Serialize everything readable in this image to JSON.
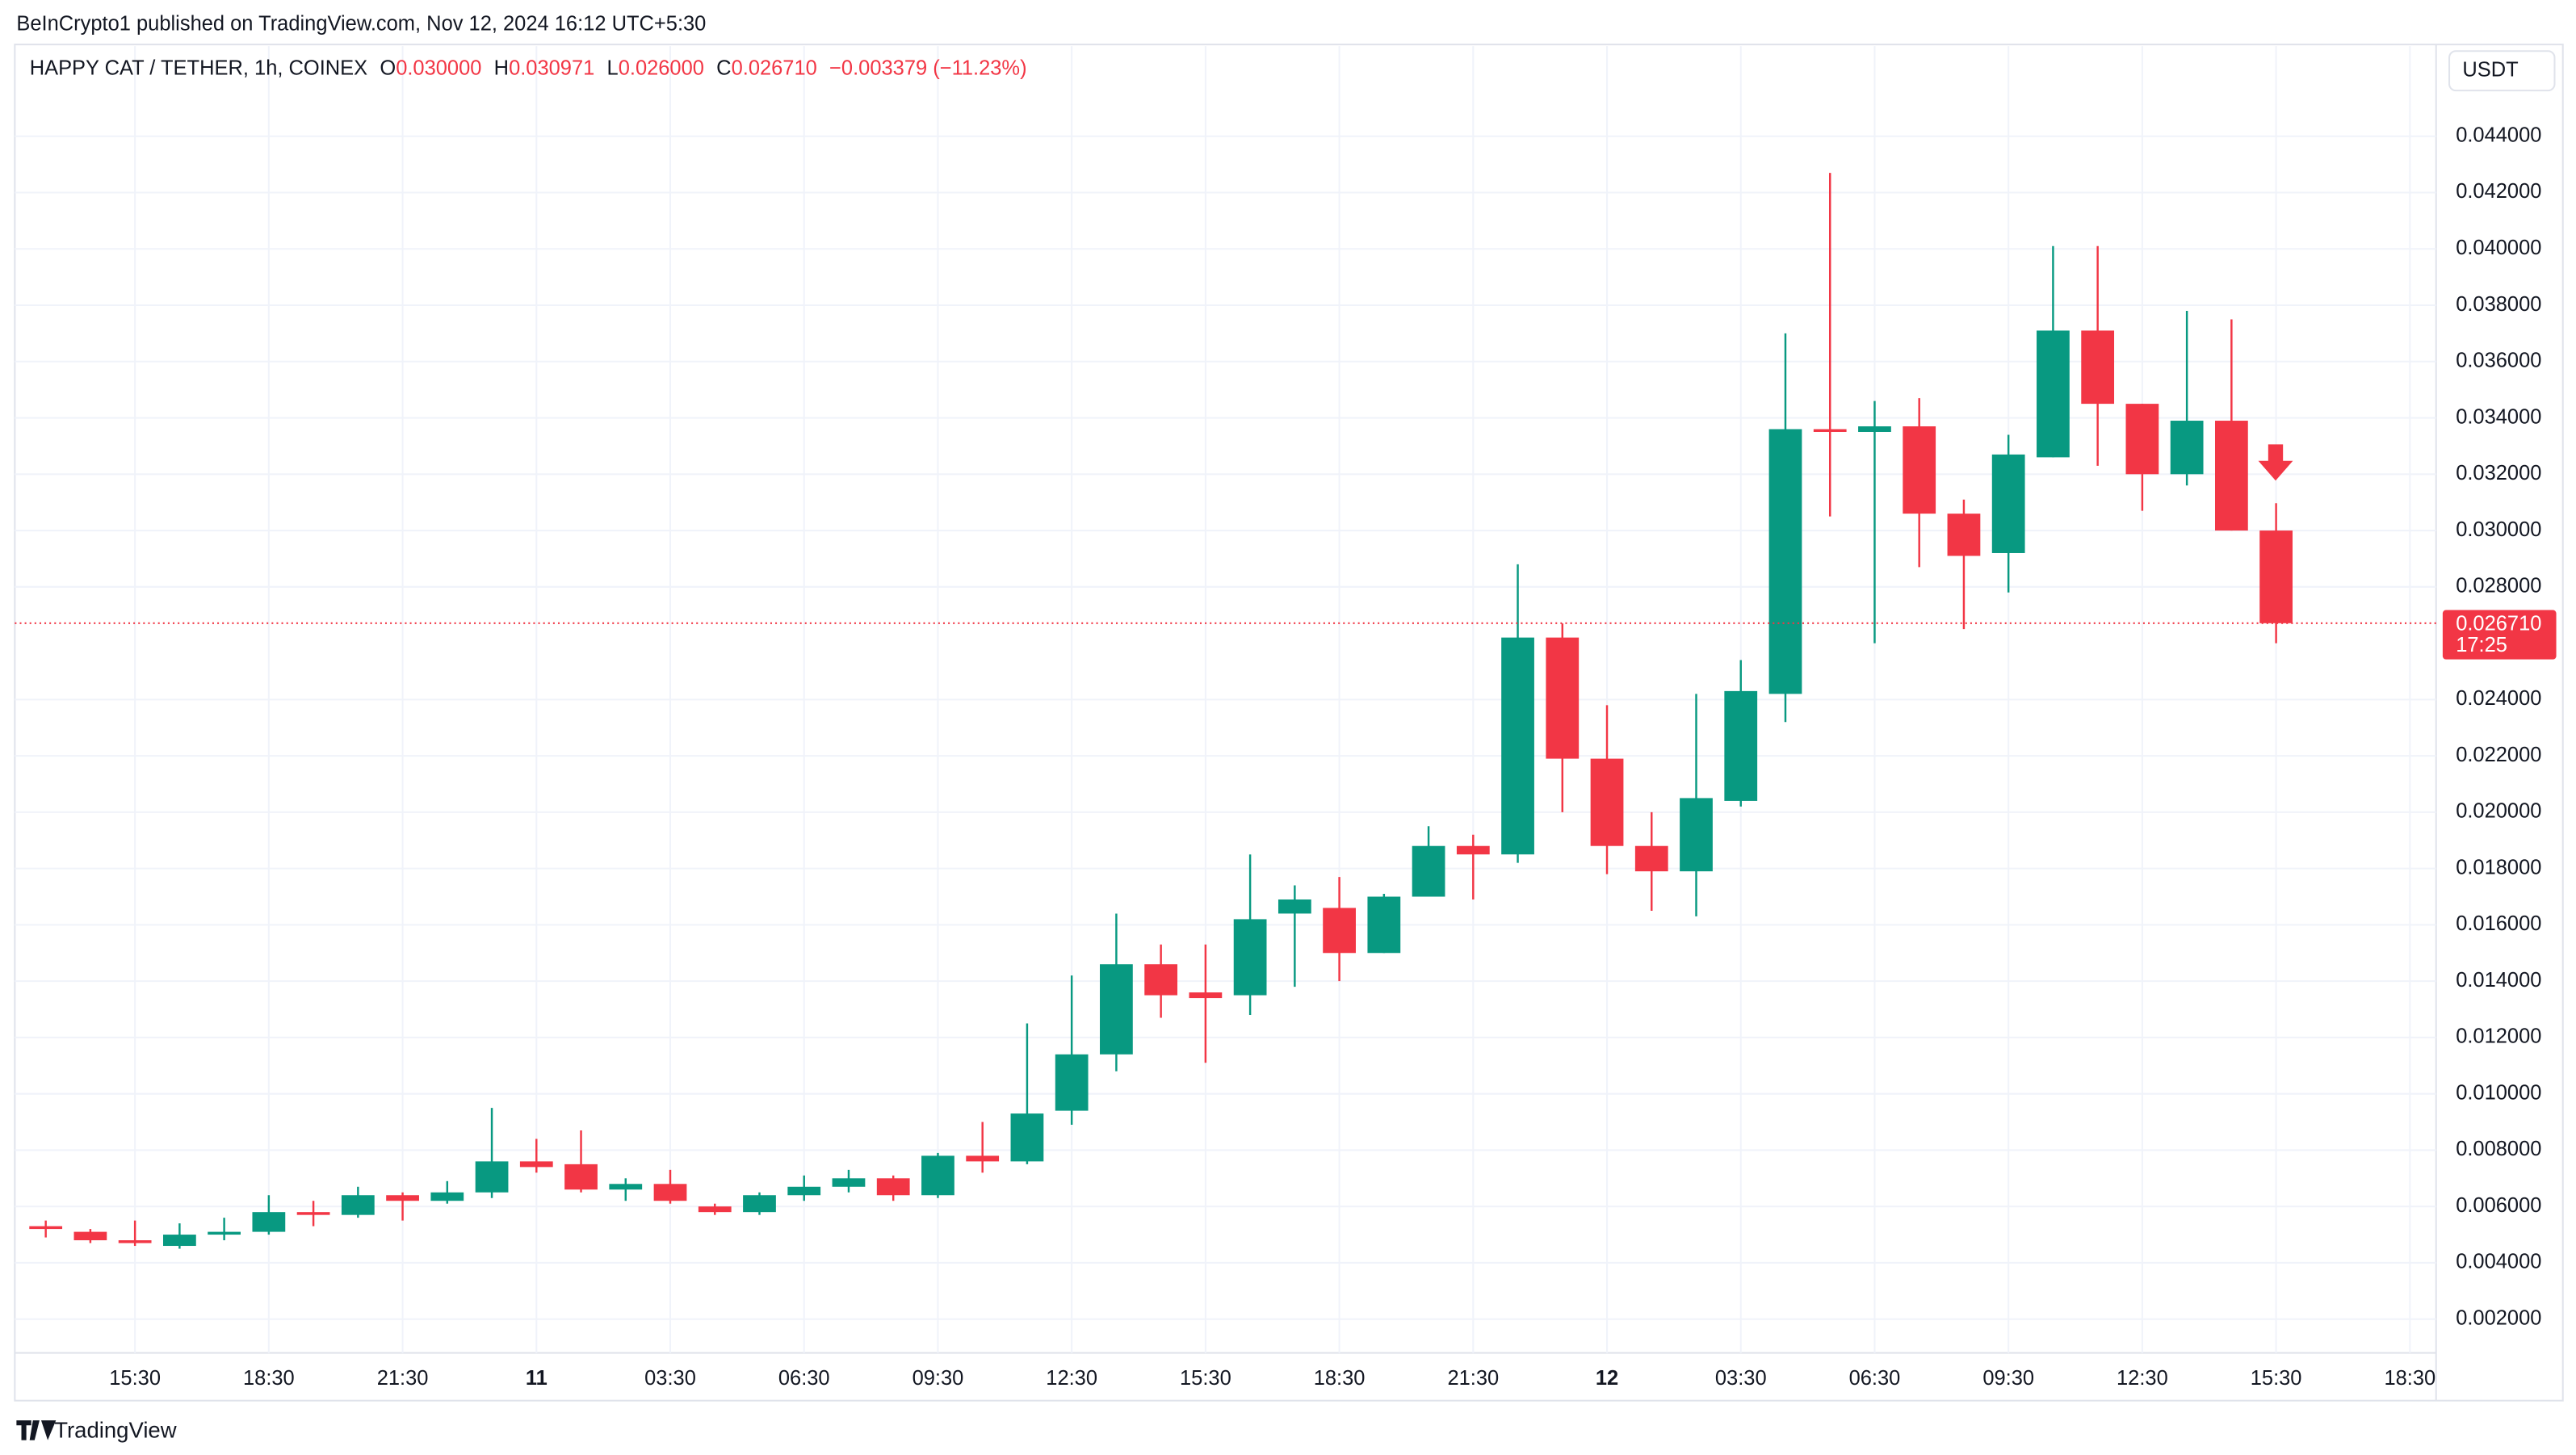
{
  "header": {
    "published": "BeInCrypto1 published on TradingView.com, Nov 12, 2024 16:12 UTC+5:30",
    "currency": "USDT",
    "brand": "TradingView"
  },
  "legend": {
    "symbol": "HAPPY CAT / TETHER, 1h, COINEX",
    "open_label": "O",
    "open": "0.030000",
    "high_label": "H",
    "high": "0.030971",
    "low_label": "L",
    "low": "0.026000",
    "close_label": "C",
    "close": "0.026710",
    "change": "−0.003379 (−11.23%)"
  },
  "price_tag": {
    "price": "0.026710",
    "countdown": "17:25"
  },
  "chart_data": {
    "type": "candlestick",
    "categories": [
      null,
      null,
      "15:30",
      null,
      null,
      "18:30",
      null,
      null,
      "21:30",
      null,
      null,
      "11",
      null,
      null,
      "03:30",
      null,
      null,
      "06:30",
      null,
      null,
      "09:30",
      null,
      null,
      "12:30",
      null,
      null,
      "15:30",
      null,
      null,
      "18:30",
      null,
      null,
      "21:30",
      null,
      null,
      "12",
      null,
      null,
      "03:30",
      null,
      null,
      "06:30",
      null,
      null,
      "09:30",
      null,
      null,
      "12:30",
      null,
      null,
      "15:30",
      null,
      null,
      "18:30"
    ],
    "open": [
      0.0053,
      0.0051,
      0.0048,
      0.0046,
      0.005,
      0.0051,
      0.0058,
      0.0057,
      0.0064,
      0.0062,
      0.0065,
      0.0076,
      0.0075,
      0.0066,
      0.0068,
      0.006,
      0.0058,
      0.0064,
      0.0067,
      0.007,
      0.0064,
      0.0078,
      0.0076,
      0.0094,
      0.0114,
      0.0146,
      0.0136,
      0.0135,
      0.0164,
      0.0166,
      0.015,
      0.017,
      0.0188,
      0.0185,
      0.0262,
      0.0219,
      0.0188,
      0.0179,
      0.0204,
      0.0242,
      0.0336,
      0.0335,
      0.0337,
      0.0306,
      0.0292,
      0.0326,
      0.0371,
      0.0345,
      0.032,
      0.0339,
      0.03,
      null,
      null,
      null
    ],
    "high": [
      0.0055,
      0.0052,
      0.0055,
      0.0054,
      0.0056,
      0.0064,
      0.0062,
      0.0067,
      0.0065,
      0.0069,
      0.0095,
      0.0084,
      0.0087,
      0.007,
      0.0073,
      0.0061,
      0.0065,
      0.0071,
      0.0073,
      0.0071,
      0.0079,
      0.009,
      0.0125,
      0.0142,
      0.0164,
      0.0153,
      0.0153,
      0.0185,
      0.0174,
      0.0177,
      0.0171,
      0.0195,
      0.0192,
      0.0288,
      0.0267,
      0.0238,
      0.02,
      0.0242,
      0.0254,
      0.037,
      0.0427,
      0.0346,
      0.0347,
      0.0311,
      0.0334,
      0.0401,
      0.0401,
      0.0345,
      0.0378,
      0.0375,
      0.030971,
      null,
      null,
      null
    ],
    "low": [
      0.0049,
      0.0047,
      0.0046,
      0.0045,
      0.0048,
      0.005,
      0.0053,
      0.0056,
      0.0055,
      0.0061,
      0.0063,
      0.0072,
      0.0065,
      0.0062,
      0.0061,
      0.0057,
      0.0057,
      0.0062,
      0.0065,
      0.0062,
      0.0063,
      0.0072,
      0.0075,
      0.0089,
      0.0108,
      0.0127,
      0.0111,
      0.0128,
      0.0138,
      0.014,
      0.015,
      0.017,
      0.0169,
      0.0182,
      0.02,
      0.0178,
      0.0165,
      0.0163,
      0.0202,
      0.0232,
      0.0305,
      0.026,
      0.0287,
      0.0265,
      0.0278,
      0.0326,
      0.0323,
      0.0307,
      0.0316,
      0.03,
      0.026,
      null,
      null,
      null
    ],
    "close": [
      0.0052,
      0.0048,
      0.0047,
      0.005,
      0.0051,
      0.0058,
      0.0057,
      0.0064,
      0.0062,
      0.0065,
      0.0076,
      0.0074,
      0.0066,
      0.0068,
      0.0062,
      0.0058,
      0.0064,
      0.0067,
      0.007,
      0.0064,
      0.0078,
      0.0076,
      0.0093,
      0.0114,
      0.0146,
      0.0135,
      0.0134,
      0.0162,
      0.0169,
      0.015,
      0.017,
      0.0188,
      0.0185,
      0.0262,
      0.0219,
      0.0188,
      0.0179,
      0.0205,
      0.0243,
      0.0336,
      0.0335,
      0.0337,
      0.0306,
      0.0291,
      0.0327,
      0.0371,
      0.0345,
      0.032,
      0.0339,
      0.03,
      0.02671,
      null,
      null,
      null
    ],
    "up_color": "#089981",
    "down_color": "#f23645",
    "ylim": [
      0.0008,
      0.0472
    ],
    "yticks": [
      {
        "value": 0.002,
        "label": "0.002000"
      },
      {
        "value": 0.004,
        "label": "0.004000"
      },
      {
        "value": 0.006,
        "label": "0.006000"
      },
      {
        "value": 0.008,
        "label": "0.008000"
      },
      {
        "value": 0.01,
        "label": "0.010000"
      },
      {
        "value": 0.012,
        "label": "0.012000"
      },
      {
        "value": 0.014,
        "label": "0.014000"
      },
      {
        "value": 0.016,
        "label": "0.016000"
      },
      {
        "value": 0.018,
        "label": "0.018000"
      },
      {
        "value": 0.02,
        "label": "0.020000"
      },
      {
        "value": 0.022,
        "label": "0.022000"
      },
      {
        "value": 0.024,
        "label": "0.024000"
      },
      {
        "value": 0.028,
        "label": "0.028000"
      },
      {
        "value": 0.03,
        "label": "0.030000"
      },
      {
        "value": 0.032,
        "label": "0.032000"
      },
      {
        "value": 0.034,
        "label": "0.034000"
      },
      {
        "value": 0.036,
        "label": "0.036000"
      },
      {
        "value": 0.038,
        "label": "0.038000"
      },
      {
        "value": 0.04,
        "label": "0.040000"
      },
      {
        "value": 0.042,
        "label": "0.042000"
      },
      {
        "value": 0.044,
        "label": "0.044000"
      }
    ],
    "grid": true
  }
}
